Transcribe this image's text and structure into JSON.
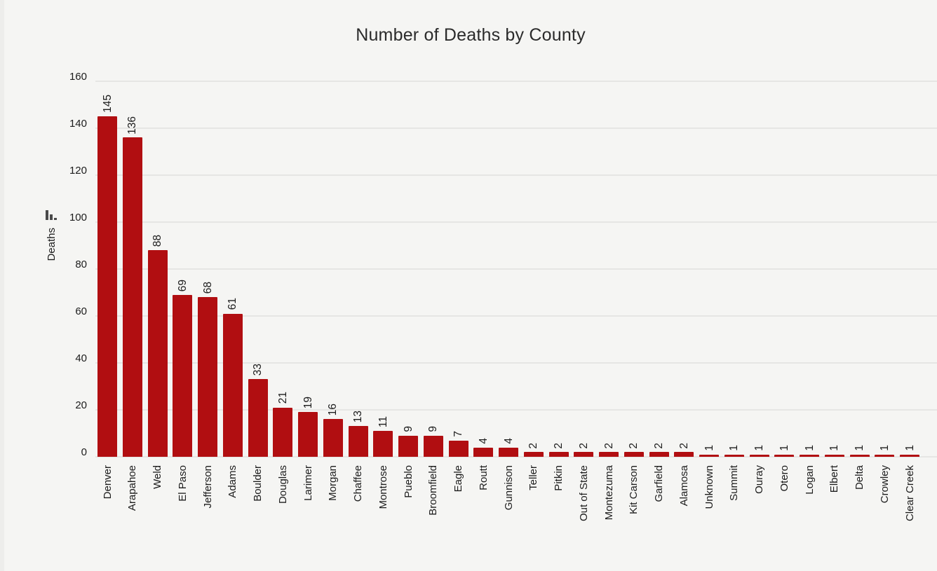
{
  "chart_data": {
    "type": "bar",
    "title": "Number of Deaths by County",
    "ylabel": "Deaths",
    "xlabel": "",
    "legend": "none",
    "grid": true,
    "ylim": [
      0,
      160
    ],
    "yticks": [
      0,
      20,
      40,
      60,
      80,
      100,
      120,
      140,
      160
    ],
    "categories": [
      "Denver",
      "Arapahoe",
      "Weld",
      "El Paso",
      "Jefferson",
      "Adams",
      "Boulder",
      "Douglas",
      "Larimer",
      "Morgan",
      "Chaffee",
      "Montrose",
      "Pueblo",
      "Broomfield",
      "Eagle",
      "Routt",
      "Gunnison",
      "Teller",
      "Pitkin",
      "Out of State",
      "Montezuma",
      "Kit Carson",
      "Garfield",
      "Alamosa",
      "Unknown",
      "Summit",
      "Ouray",
      "Otero",
      "Logan",
      "Elbert",
      "Delta",
      "Crowley",
      "Clear Creek"
    ],
    "values": [
      145,
      136,
      88,
      69,
      68,
      61,
      33,
      21,
      19,
      16,
      13,
      11,
      9,
      9,
      7,
      4,
      4,
      2,
      2,
      2,
      2,
      2,
      2,
      2,
      1,
      1,
      1,
      1,
      1,
      1,
      1,
      1,
      1
    ],
    "bar_color": "#b10e11",
    "background_color": "#f5f5f3",
    "gridline_color": "#e6e6e4",
    "text_color": "#1c1c1c",
    "icon": "bar-chart-icon"
  }
}
